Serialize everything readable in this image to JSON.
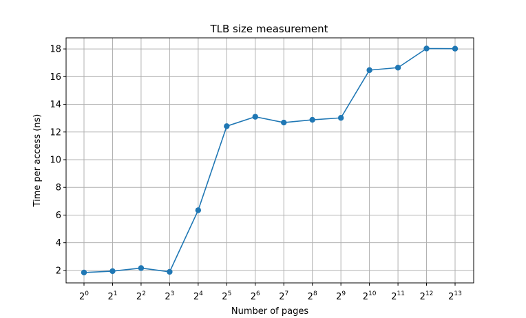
{
  "chart_data": {
    "type": "line",
    "title": "TLB size measurement",
    "xlabel": "Number of pages",
    "ylabel": "Time per access (ns)",
    "x_scale": "log2",
    "x": [
      1,
      2,
      4,
      8,
      16,
      32,
      64,
      128,
      256,
      512,
      1024,
      2048,
      4096,
      8192
    ],
    "x_tick_labels": [
      {
        "base": "2",
        "exp": "0"
      },
      {
        "base": "2",
        "exp": "1"
      },
      {
        "base": "2",
        "exp": "2"
      },
      {
        "base": "2",
        "exp": "3"
      },
      {
        "base": "2",
        "exp": "4"
      },
      {
        "base": "2",
        "exp": "5"
      },
      {
        "base": "2",
        "exp": "6"
      },
      {
        "base": "2",
        "exp": "7"
      },
      {
        "base": "2",
        "exp": "8"
      },
      {
        "base": "2",
        "exp": "9"
      },
      {
        "base": "2",
        "exp": "10"
      },
      {
        "base": "2",
        "exp": "11"
      },
      {
        "base": "2",
        "exp": "12"
      },
      {
        "base": "2",
        "exp": "13"
      }
    ],
    "series": [
      {
        "values": [
          1.85,
          1.95,
          2.17,
          1.9,
          6.35,
          12.42,
          13.1,
          12.68,
          12.88,
          13.02,
          16.47,
          16.65,
          18.03,
          18.02
        ],
        "color": "#1f77b4",
        "marker": "circle"
      }
    ],
    "ylim": [
      1.1,
      18.8
    ],
    "y_ticks": [
      2,
      4,
      6,
      8,
      10,
      12,
      14,
      16,
      18
    ],
    "grid": true,
    "legend": "none"
  },
  "colors": {
    "series": "#1f77b4",
    "grid": "#b0b0b0",
    "axes": "#000000"
  }
}
